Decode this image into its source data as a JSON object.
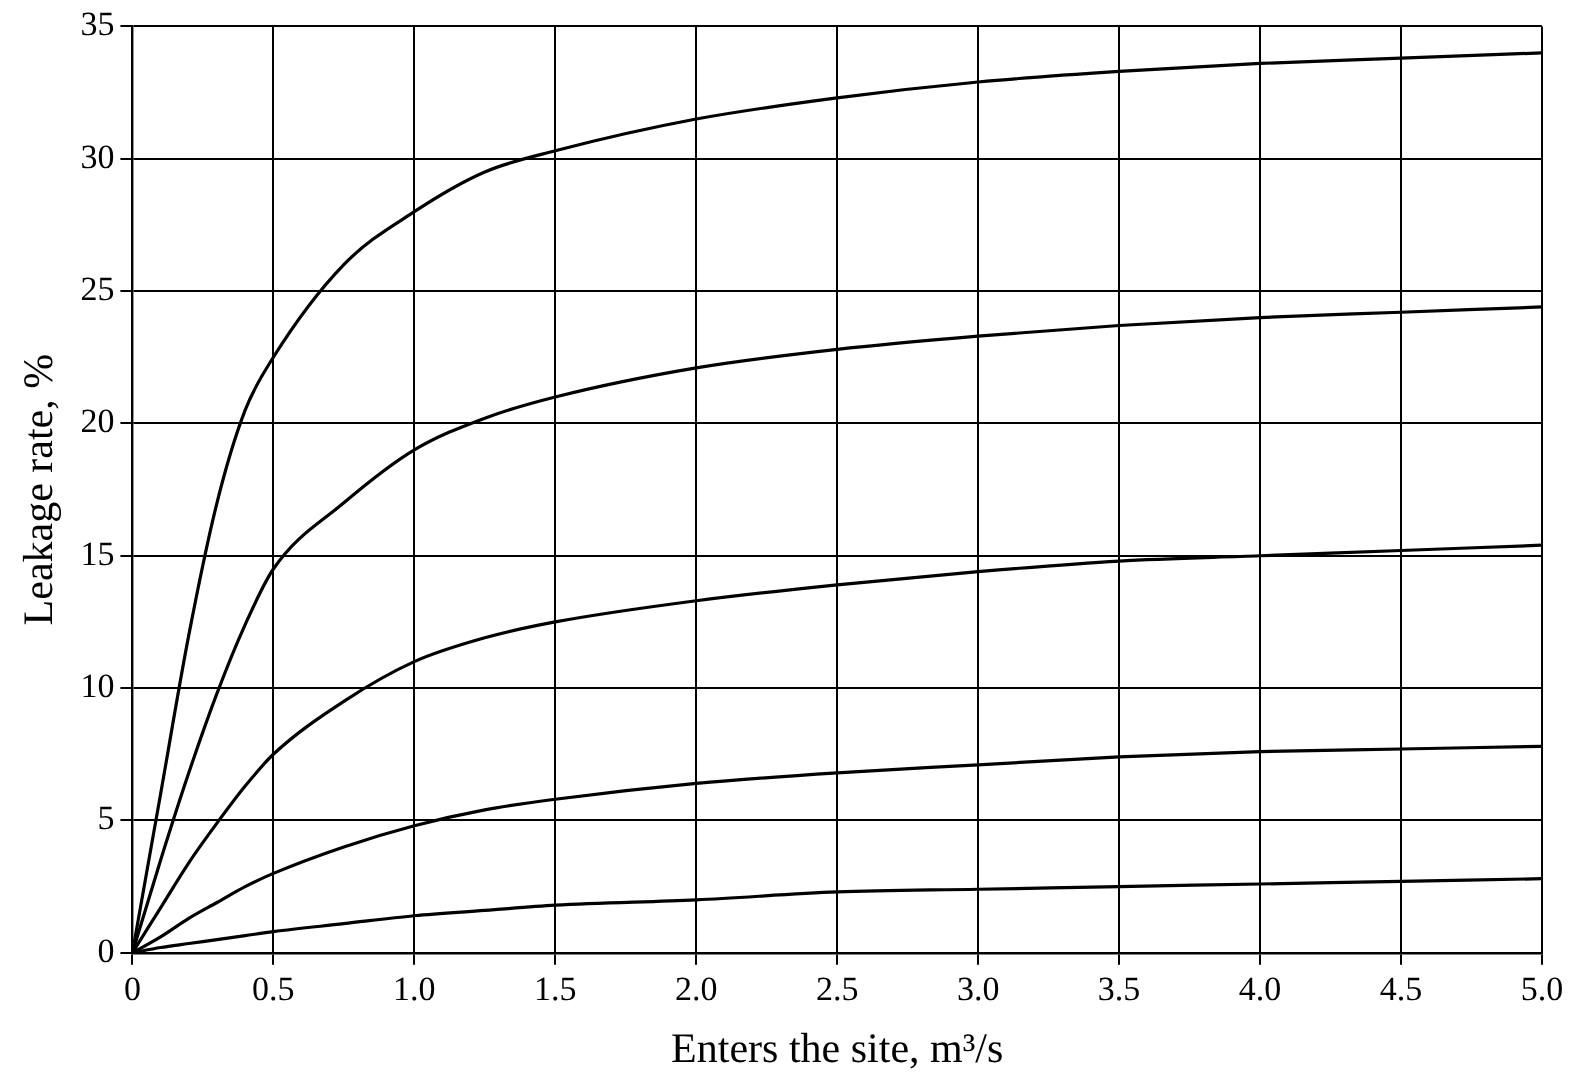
{
  "chart_data": {
    "type": "line",
    "xlabel": "Enters the site, m³/s",
    "ylabel": "Leakage rate, %",
    "x": [
      0,
      0.1,
      0.2,
      0.3,
      0.4,
      0.5,
      0.75,
      1.0,
      1.25,
      1.5,
      2.0,
      2.5,
      3.0,
      3.5,
      4.0,
      4.5,
      5.0
    ],
    "series": [
      {
        "color": "#000000",
        "values": [
          0,
          6,
          12,
          17,
          20.5,
          22.5,
          26,
          28,
          29.5,
          30.3,
          31.5,
          32.3,
          32.9,
          33.3,
          33.6,
          33.8,
          34
        ]
      },
      {
        "color": "#000000",
        "values": [
          0,
          3.5,
          6.8,
          9.8,
          12.4,
          14.5,
          17,
          19,
          20.2,
          21,
          22.1,
          22.8,
          23.3,
          23.7,
          24,
          24.2,
          24.4
        ]
      },
      {
        "color": "#000000",
        "values": [
          0,
          1.7,
          3.4,
          4.9,
          6.3,
          7.5,
          9.5,
          11,
          11.9,
          12.5,
          13.3,
          13.9,
          14.4,
          14.8,
          15,
          15.2,
          15.4
        ]
      },
      {
        "color": "#000000",
        "values": [
          0,
          0.6,
          1.3,
          1.9,
          2.5,
          3,
          4,
          4.8,
          5.4,
          5.8,
          6.4,
          6.8,
          7.1,
          7.4,
          7.6,
          7.7,
          7.8
        ]
      },
      {
        "color": "#000000",
        "values": [
          0,
          0.2,
          0.35,
          0.5,
          0.65,
          0.8,
          1.1,
          1.4,
          1.6,
          1.8,
          2.0,
          2.3,
          2.4,
          2.5,
          2.6,
          2.7,
          2.8
        ]
      }
    ],
    "xlim": [
      0,
      5
    ],
    "xticks": [
      0,
      0.5,
      {
        "value": 1,
        "label": "1.0"
      },
      1.5,
      {
        "value": 2,
        "label": "2.0"
      },
      2.5,
      {
        "value": 3,
        "label": "3.0"
      },
      3.5,
      {
        "value": 4,
        "label": "4.0"
      },
      4.5,
      {
        "value": 5,
        "label": "5.0"
      }
    ],
    "ylim": [
      0,
      35
    ],
    "yticks": [
      0,
      5,
      10,
      15,
      20,
      25,
      30,
      35
    ],
    "grid": true,
    "legend": false,
    "marker": "none",
    "line_style": "solid"
  }
}
